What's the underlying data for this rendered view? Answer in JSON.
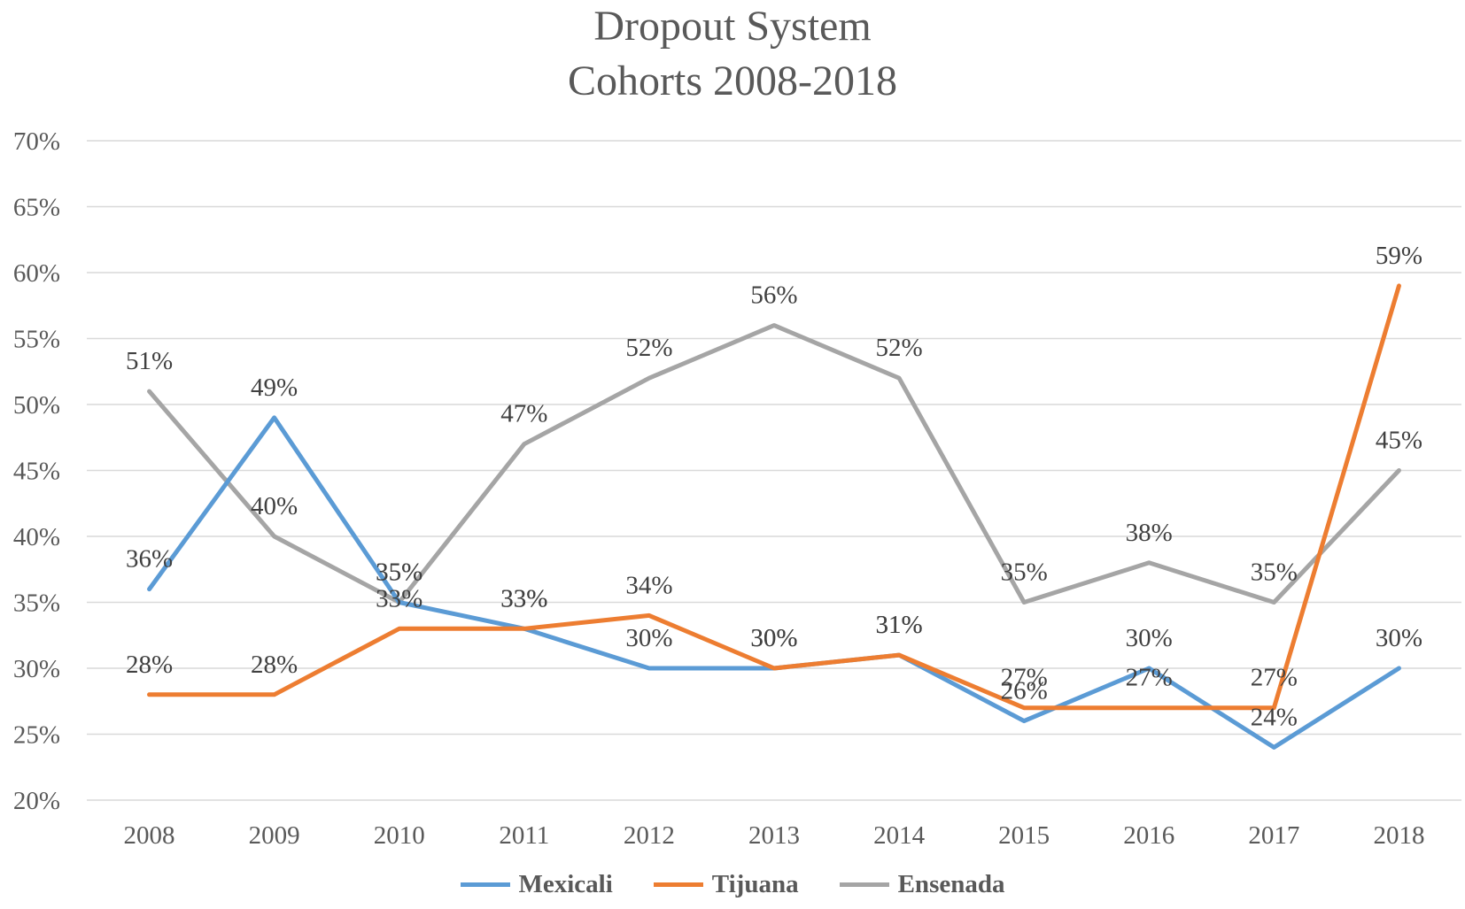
{
  "chart_data": {
    "type": "line",
    "title": [
      "Dropout System",
      "Cohorts 2008-2018"
    ],
    "categories": [
      "2008",
      "2009",
      "2010",
      "2011",
      "2012",
      "2013",
      "2014",
      "2015",
      "2016",
      "2017",
      "2018"
    ],
    "series": [
      {
        "name": "Mexicali",
        "color": "#5B9BD5",
        "values": [
          36,
          49,
          35,
          33,
          30,
          30,
          31,
          26,
          30,
          24,
          30
        ]
      },
      {
        "name": "Tijuana",
        "color": "#ED7D31",
        "values": [
          28,
          28,
          33,
          33,
          34,
          30,
          31,
          27,
          27,
          27,
          59
        ]
      },
      {
        "name": "Ensenada",
        "color": "#A5A5A5",
        "values": [
          51,
          40,
          35,
          47,
          52,
          56,
          52,
          35,
          38,
          35,
          45
        ]
      }
    ],
    "value_suffix": "%",
    "ylim": [
      20,
      70
    ],
    "yticks": [
      20,
      25,
      30,
      35,
      40,
      45,
      50,
      55,
      60,
      65,
      70
    ],
    "ytick_labels": [
      "20%",
      "25%",
      "30%",
      "35%",
      "40%",
      "45%",
      "50%",
      "55%",
      "60%",
      "65%",
      "70%"
    ],
    "grid": true,
    "legend_position": "bottom"
  }
}
